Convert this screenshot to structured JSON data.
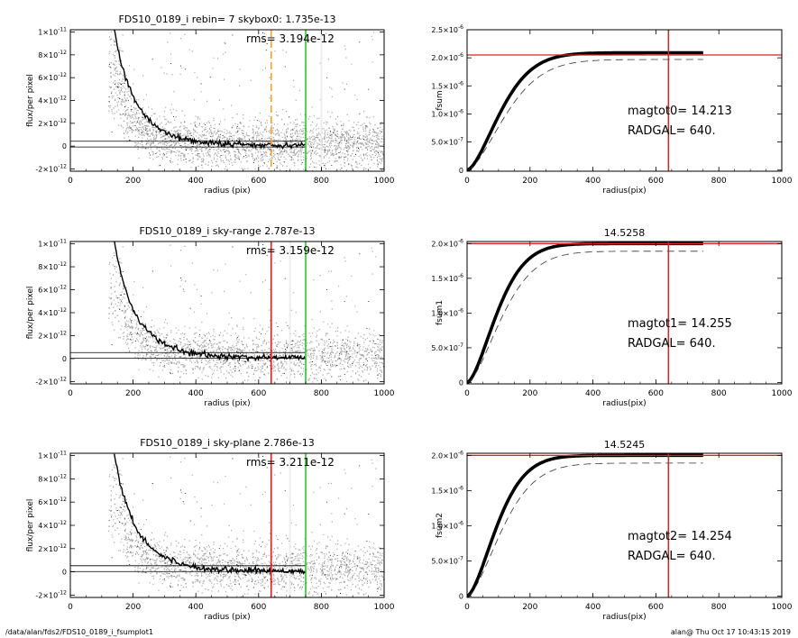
{
  "footer": {
    "path": "/data/alan/fds2/FDS10_0189_i_fsumplot1",
    "stamp": "alan@  Thu Oct 17 10:43:15 2019"
  },
  "chart_data": [
    {
      "type": "scatter",
      "title": "FDS10_0189_i rebin= 7    skybox0:  1.735e-13",
      "rms_label": "rms= 3.194e-12",
      "xlabel": "radius (pix)",
      "ylabel": "flux/per pixel",
      "xlim": [
        0,
        1000
      ],
      "ylim": [
        -2.2e-12,
        1.02e-11
      ],
      "x_ticks": [
        0,
        200,
        400,
        600,
        800,
        1000
      ],
      "x_tick_labels": [
        "0",
        "200",
        "400",
        "600",
        "800",
        "1000"
      ],
      "y_ticks": [
        -2e-12,
        0,
        2e-12,
        4e-12,
        6e-12,
        8e-12,
        1e-11
      ],
      "y_tick_labels": [
        [
          "-2×10",
          "-12"
        ],
        [
          "0",
          ""
        ],
        [
          "2×10",
          "-12"
        ],
        [
          "4×10",
          "-12"
        ],
        [
          "6×10",
          "-12"
        ],
        [
          "8×10",
          "-12"
        ],
        [
          "1×10",
          "-11"
        ]
      ],
      "sky_level": 1.735e-13,
      "band_half_width": 2.5e-13,
      "profile_scale": 1.1e-11,
      "profile_length": 60,
      "profile_points": [
        [
          140,
          1.02e-11
        ],
        [
          150,
          8.8e-12
        ],
        [
          160,
          7.5e-12
        ],
        [
          180,
          5.7e-12
        ],
        [
          200,
          4.3e-12
        ],
        [
          220,
          3.3e-12
        ],
        [
          250,
          2.3e-12
        ],
        [
          280,
          1.6e-12
        ],
        [
          320,
          1e-12
        ],
        [
          360,
          6.5e-13
        ],
        [
          400,
          4e-13
        ],
        [
          450,
          2.6e-13
        ],
        [
          500,
          1.8e-13
        ],
        [
          600,
          1e-13
        ],
        [
          750,
          1e-13
        ]
      ],
      "vertical_lines": [
        {
          "x": 640,
          "color": "#e8a040",
          "style": "dashed"
        },
        {
          "x": 750,
          "color": "#22cc22",
          "style": "solid"
        }
      ],
      "light_columns": [
        800
      ]
    },
    {
      "type": "line",
      "title": "",
      "xlabel": "radius(pix)",
      "ylabel": "fsum",
      "xlim": [
        0,
        1000
      ],
      "ylim": [
        -2e-08,
        2.5e-06
      ],
      "x_ticks": [
        0,
        200,
        400,
        600,
        800,
        1000
      ],
      "x_tick_labels": [
        "0",
        "200",
        "400",
        "600",
        "800",
        "1000"
      ],
      "y_ticks": [
        0,
        5e-07,
        1e-06,
        1.5e-06,
        2e-06,
        2.5e-06
      ],
      "y_tick_labels": [
        [
          "0",
          ""
        ],
        [
          "5.0×10",
          "-7"
        ],
        [
          "1.0×10",
          "-6"
        ],
        [
          "1.5×10",
          "-6"
        ],
        [
          "2.0×10",
          "-6"
        ],
        [
          "2.5×10",
          "-6"
        ]
      ],
      "curve_asymptote": 2.09e-06,
      "curve_scale": 135,
      "curve_end": 750,
      "dashed_asymptote": 1.97e-06,
      "dashed_scale": 155,
      "hline": 2.05e-06,
      "vline": 640,
      "mag_label": "magtot0=  14.213",
      "radgal_label": "RADGAL=    640."
    },
    {
      "type": "scatter",
      "title": "FDS10_0189_i sky-range  2.787e-13",
      "rms_label": "rms= 3.159e-12",
      "xlabel": "radius (pix)",
      "ylabel": "flux/per pixel",
      "xlim": [
        0,
        1000
      ],
      "ylim": [
        -2.2e-12,
        1.02e-11
      ],
      "x_ticks": [
        0,
        200,
        400,
        600,
        800,
        1000
      ],
      "x_tick_labels": [
        "0",
        "200",
        "400",
        "600",
        "800",
        "1000"
      ],
      "y_ticks": [
        -2e-12,
        0,
        2e-12,
        4e-12,
        6e-12,
        8e-12,
        1e-11
      ],
      "y_tick_labels": [
        [
          "-2×10",
          "-12"
        ],
        [
          "0",
          ""
        ],
        [
          "2×10",
          "-12"
        ],
        [
          "4×10",
          "-12"
        ],
        [
          "6×10",
          "-12"
        ],
        [
          "8×10",
          "-12"
        ],
        [
          "1×10",
          "-11"
        ]
      ],
      "sky_level": 2.787e-13,
      "band_half_width": 2.5e-13,
      "profile_scale": 1.1e-11,
      "profile_length": 60,
      "profile_points": [
        [
          140,
          1.02e-11
        ],
        [
          150,
          8.8e-12
        ],
        [
          160,
          7.5e-12
        ],
        [
          180,
          5.7e-12
        ],
        [
          200,
          4.3e-12
        ],
        [
          220,
          3.3e-12
        ],
        [
          250,
          2.3e-12
        ],
        [
          280,
          1.6e-12
        ],
        [
          320,
          1e-12
        ],
        [
          360,
          6.5e-13
        ],
        [
          400,
          4e-13
        ],
        [
          450,
          2.6e-13
        ],
        [
          500,
          1.8e-13
        ],
        [
          600,
          1e-13
        ],
        [
          750,
          1e-13
        ]
      ],
      "vertical_lines": [
        {
          "x": 640,
          "color": "#dd2222",
          "style": "solid"
        },
        {
          "x": 750,
          "color": "#22cc22",
          "style": "solid"
        }
      ],
      "light_columns": [
        700
      ]
    },
    {
      "type": "line",
      "title": "14.5258",
      "xlabel": "radius(pix)",
      "ylabel": "fsum1",
      "xlim": [
        0,
        1000
      ],
      "ylim": [
        -2e-08,
        2.03e-06
      ],
      "x_ticks": [
        0,
        200,
        400,
        600,
        800,
        1000
      ],
      "x_tick_labels": [
        "0",
        "200",
        "400",
        "600",
        "800",
        "1000"
      ],
      "y_ticks": [
        0,
        5e-07,
        1e-06,
        1.5e-06,
        2e-06
      ],
      "y_tick_labels": [
        [
          "0",
          ""
        ],
        [
          "5.0×10",
          "-7"
        ],
        [
          "1.0×10",
          "-6"
        ],
        [
          "1.5×10",
          "-6"
        ],
        [
          "2.0×10",
          "-6"
        ]
      ],
      "curve_asymptote": 2e-06,
      "curve_scale": 120,
      "curve_end": 750,
      "dashed_asymptote": 1.89e-06,
      "dashed_scale": 140,
      "hline": 2e-06,
      "vline": 640,
      "mag_label": "magtot1=  14.255",
      "radgal_label": "RADGAL=    640."
    },
    {
      "type": "scatter",
      "title": "FDS10_0189_i sky-plane  2.786e-13",
      "rms_label": "rms= 3.211e-12",
      "xlabel": "radius (pix)",
      "ylabel": "flux/per pixel",
      "xlim": [
        0,
        1000
      ],
      "ylim": [
        -2.2e-12,
        1.02e-11
      ],
      "x_ticks": [
        0,
        200,
        400,
        600,
        800,
        1000
      ],
      "x_tick_labels": [
        "0",
        "200",
        "400",
        "600",
        "800",
        "1000"
      ],
      "y_ticks": [
        -2e-12,
        0,
        2e-12,
        4e-12,
        6e-12,
        8e-12,
        1e-11
      ],
      "y_tick_labels": [
        [
          "-2×10",
          "-12"
        ],
        [
          "0",
          ""
        ],
        [
          "2×10",
          "-12"
        ],
        [
          "4×10",
          "-12"
        ],
        [
          "6×10",
          "-12"
        ],
        [
          "8×10",
          "-12"
        ],
        [
          "1×10",
          "-11"
        ]
      ],
      "sky_level": 2.786e-13,
      "band_half_width": 2.5e-13,
      "profile_scale": 1.1e-11,
      "profile_length": 60,
      "profile_points": [
        [
          140,
          1.02e-11
        ],
        [
          150,
          8.8e-12
        ],
        [
          160,
          7.5e-12
        ],
        [
          180,
          5.7e-12
        ],
        [
          200,
          4.3e-12
        ],
        [
          220,
          3.3e-12
        ],
        [
          250,
          2.3e-12
        ],
        [
          280,
          1.6e-12
        ],
        [
          320,
          1e-12
        ],
        [
          360,
          6.5e-13
        ],
        [
          400,
          4e-13
        ],
        [
          450,
          2.6e-13
        ],
        [
          500,
          1.8e-13
        ],
        [
          600,
          1e-13
        ],
        [
          750,
          1e-13
        ]
      ],
      "vertical_lines": [
        {
          "x": 640,
          "color": "#dd2222",
          "style": "solid"
        },
        {
          "x": 750,
          "color": "#22cc22",
          "style": "solid"
        }
      ],
      "light_columns": [
        700
      ]
    },
    {
      "type": "line",
      "title": "14.5245",
      "xlabel": "radius(pix)",
      "ylabel": "fsum2",
      "xlim": [
        0,
        1000
      ],
      "ylim": [
        -2e-08,
        2.03e-06
      ],
      "x_ticks": [
        0,
        200,
        400,
        600,
        800,
        1000
      ],
      "x_tick_labels": [
        "0",
        "200",
        "400",
        "600",
        "800",
        "1000"
      ],
      "y_ticks": [
        0,
        5e-07,
        1e-06,
        1.5e-06,
        2e-06
      ],
      "y_tick_labels": [
        [
          "0",
          ""
        ],
        [
          "5.0×10",
          "-7"
        ],
        [
          "1.0×10",
          "-6"
        ],
        [
          "1.5×10",
          "-6"
        ],
        [
          "2.0×10",
          "-6"
        ]
      ],
      "curve_asymptote": 2e-06,
      "curve_scale": 120,
      "curve_end": 750,
      "dashed_asymptote": 1.89e-06,
      "dashed_scale": 140,
      "hline": 2e-06,
      "vline": 640,
      "mag_label": "magtot2=  14.254",
      "radgal_label": "RADGAL=    640."
    }
  ]
}
